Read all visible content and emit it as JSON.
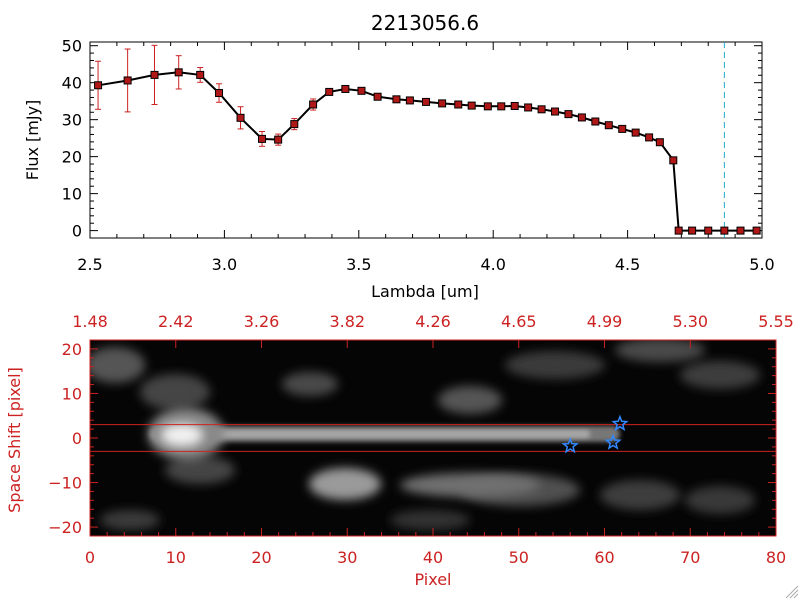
{
  "colors": {
    "axis": "#000000",
    "accent_red": "#cc2222",
    "line_black": "#000000",
    "cyan_dash": "#22aacc",
    "star_blue": "#3388ff",
    "background": "#ffffff"
  },
  "chart_data": [
    {
      "type": "line",
      "title": "2213056.6",
      "xlabel": "Lambda [um]",
      "ylabel": "Flux [mJy]",
      "xlim": [
        2.5,
        5.0
      ],
      "ylim": [
        -2,
        51
      ],
      "xticks": [
        2.5,
        3.0,
        3.5,
        4.0,
        4.5,
        5.0
      ],
      "xtick_labels": [
        "2.5",
        "3.0",
        "3.5",
        "4.0",
        "4.5",
        "5.0"
      ],
      "yticks": [
        0,
        10,
        20,
        30,
        40,
        50
      ],
      "ytick_labels": [
        "0",
        "10",
        "20",
        "30",
        "40",
        "50"
      ],
      "series": [
        {
          "name": "Flux",
          "x": [
            2.53,
            2.64,
            2.74,
            2.83,
            2.91,
            2.98,
            3.06,
            3.14,
            3.2,
            3.26,
            3.33,
            3.39,
            3.45,
            3.51,
            3.57,
            3.64,
            3.69,
            3.75,
            3.81,
            3.87,
            3.92,
            3.98,
            4.03,
            4.08,
            4.13,
            4.18,
            4.23,
            4.28,
            4.33,
            4.38,
            4.43,
            4.48,
            4.53,
            4.58,
            4.62,
            4.67,
            4.69,
            4.74,
            4.8,
            4.86,
            4.92,
            4.98
          ],
          "y": [
            39.3,
            40.6,
            42.1,
            42.8,
            42.1,
            37.2,
            30.5,
            24.8,
            24.6,
            28.8,
            34.1,
            37.5,
            38.3,
            37.8,
            36.2,
            35.5,
            35.2,
            34.8,
            34.4,
            34.1,
            33.8,
            33.6,
            33.6,
            33.7,
            33.3,
            32.8,
            32.2,
            31.5,
            30.6,
            29.5,
            28.5,
            27.5,
            26.5,
            25.2,
            23.9,
            19.0,
            0.0,
            0.0,
            0.0,
            0.0,
            0.0,
            0.0
          ],
          "error": [
            6.5,
            8.5,
            8.0,
            4.5,
            2.0,
            2.5,
            3.0,
            2.0,
            1.5,
            1.5,
            1.5,
            0.8,
            0.6,
            0.6,
            0.5,
            0.5,
            0.5,
            0.5,
            0.5,
            0.5,
            0.5,
            0.5,
            0.5,
            0.5,
            0.5,
            0.5,
            0.5,
            0.5,
            0.5,
            0.5,
            0.5,
            0.5,
            0.5,
            0.5,
            0.5,
            0.5,
            0,
            0,
            0,
            0,
            0,
            0
          ]
        }
      ],
      "reference_line": {
        "style": "dashed vertical",
        "x": 4.86
      }
    },
    {
      "type": "heatmap",
      "xlabel": "Pixel",
      "ylabel": "Space Shift [pixel]",
      "xlim": [
        0,
        80
      ],
      "ylim": [
        -22,
        22
      ],
      "xticks": [
        0,
        10,
        20,
        30,
        40,
        50,
        60,
        70,
        80
      ],
      "xtick_labels": [
        "0",
        "10",
        "20",
        "30",
        "40",
        "50",
        "60",
        "70",
        "80"
      ],
      "yticks": [
        -20,
        -10,
        0,
        10,
        20
      ],
      "ytick_labels": [
        "−20",
        "−10",
        "0",
        "10",
        "20"
      ],
      "top_axis_ticks": [
        0,
        10,
        20,
        30,
        40,
        50,
        60,
        70,
        80
      ],
      "top_axis_labels": [
        "1.48",
        "2.42",
        "3.26",
        "3.82",
        "4.26",
        "4.65",
        "4.99",
        "5.30",
        "5.55"
      ],
      "extraction_band": [
        -3,
        3
      ],
      "sources": [
        {
          "label": "bright source",
          "x": 12,
          "y": 0
        },
        {
          "label": "secondary source",
          "x": 30,
          "y": -10
        }
      ],
      "stars": [
        {
          "x": 61.8,
          "y": 3.2
        },
        {
          "x": 61.0,
          "y": -1.0
        },
        {
          "x": 56.0,
          "y": -1.8
        }
      ]
    }
  ]
}
